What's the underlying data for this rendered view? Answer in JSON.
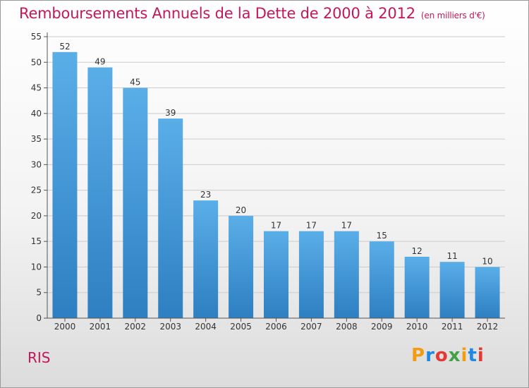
{
  "header": {
    "title": "Remboursements Annuels de la Dette de 2000 à 2012",
    "unit": "(en milliers d'€)"
  },
  "commune": "RIS",
  "logo": {
    "text": "Proxiti",
    "colors": [
      "#f39c12",
      "#1e88e5",
      "#e53935",
      "#43a047",
      "#f39c12",
      "#1e88e5",
      "#e53935"
    ]
  },
  "colors": {
    "bar_light": "#5aaee8",
    "bar_dark": "#2d7fc1",
    "axis": "#555555",
    "grid": "#cccccc",
    "title": "#c2185b"
  },
  "chart_data": {
    "type": "bar",
    "categories": [
      "2000",
      "2001",
      "2002",
      "2003",
      "2004",
      "2005",
      "2006",
      "2007",
      "2008",
      "2009",
      "2010",
      "2011",
      "2012"
    ],
    "values": [
      52,
      49,
      45,
      39,
      23,
      20,
      17,
      17,
      17,
      15,
      12,
      11,
      10
    ],
    "ylim": [
      0,
      55
    ],
    "yticks": [
      0,
      5,
      10,
      15,
      20,
      25,
      30,
      35,
      40,
      45,
      50,
      55
    ]
  }
}
